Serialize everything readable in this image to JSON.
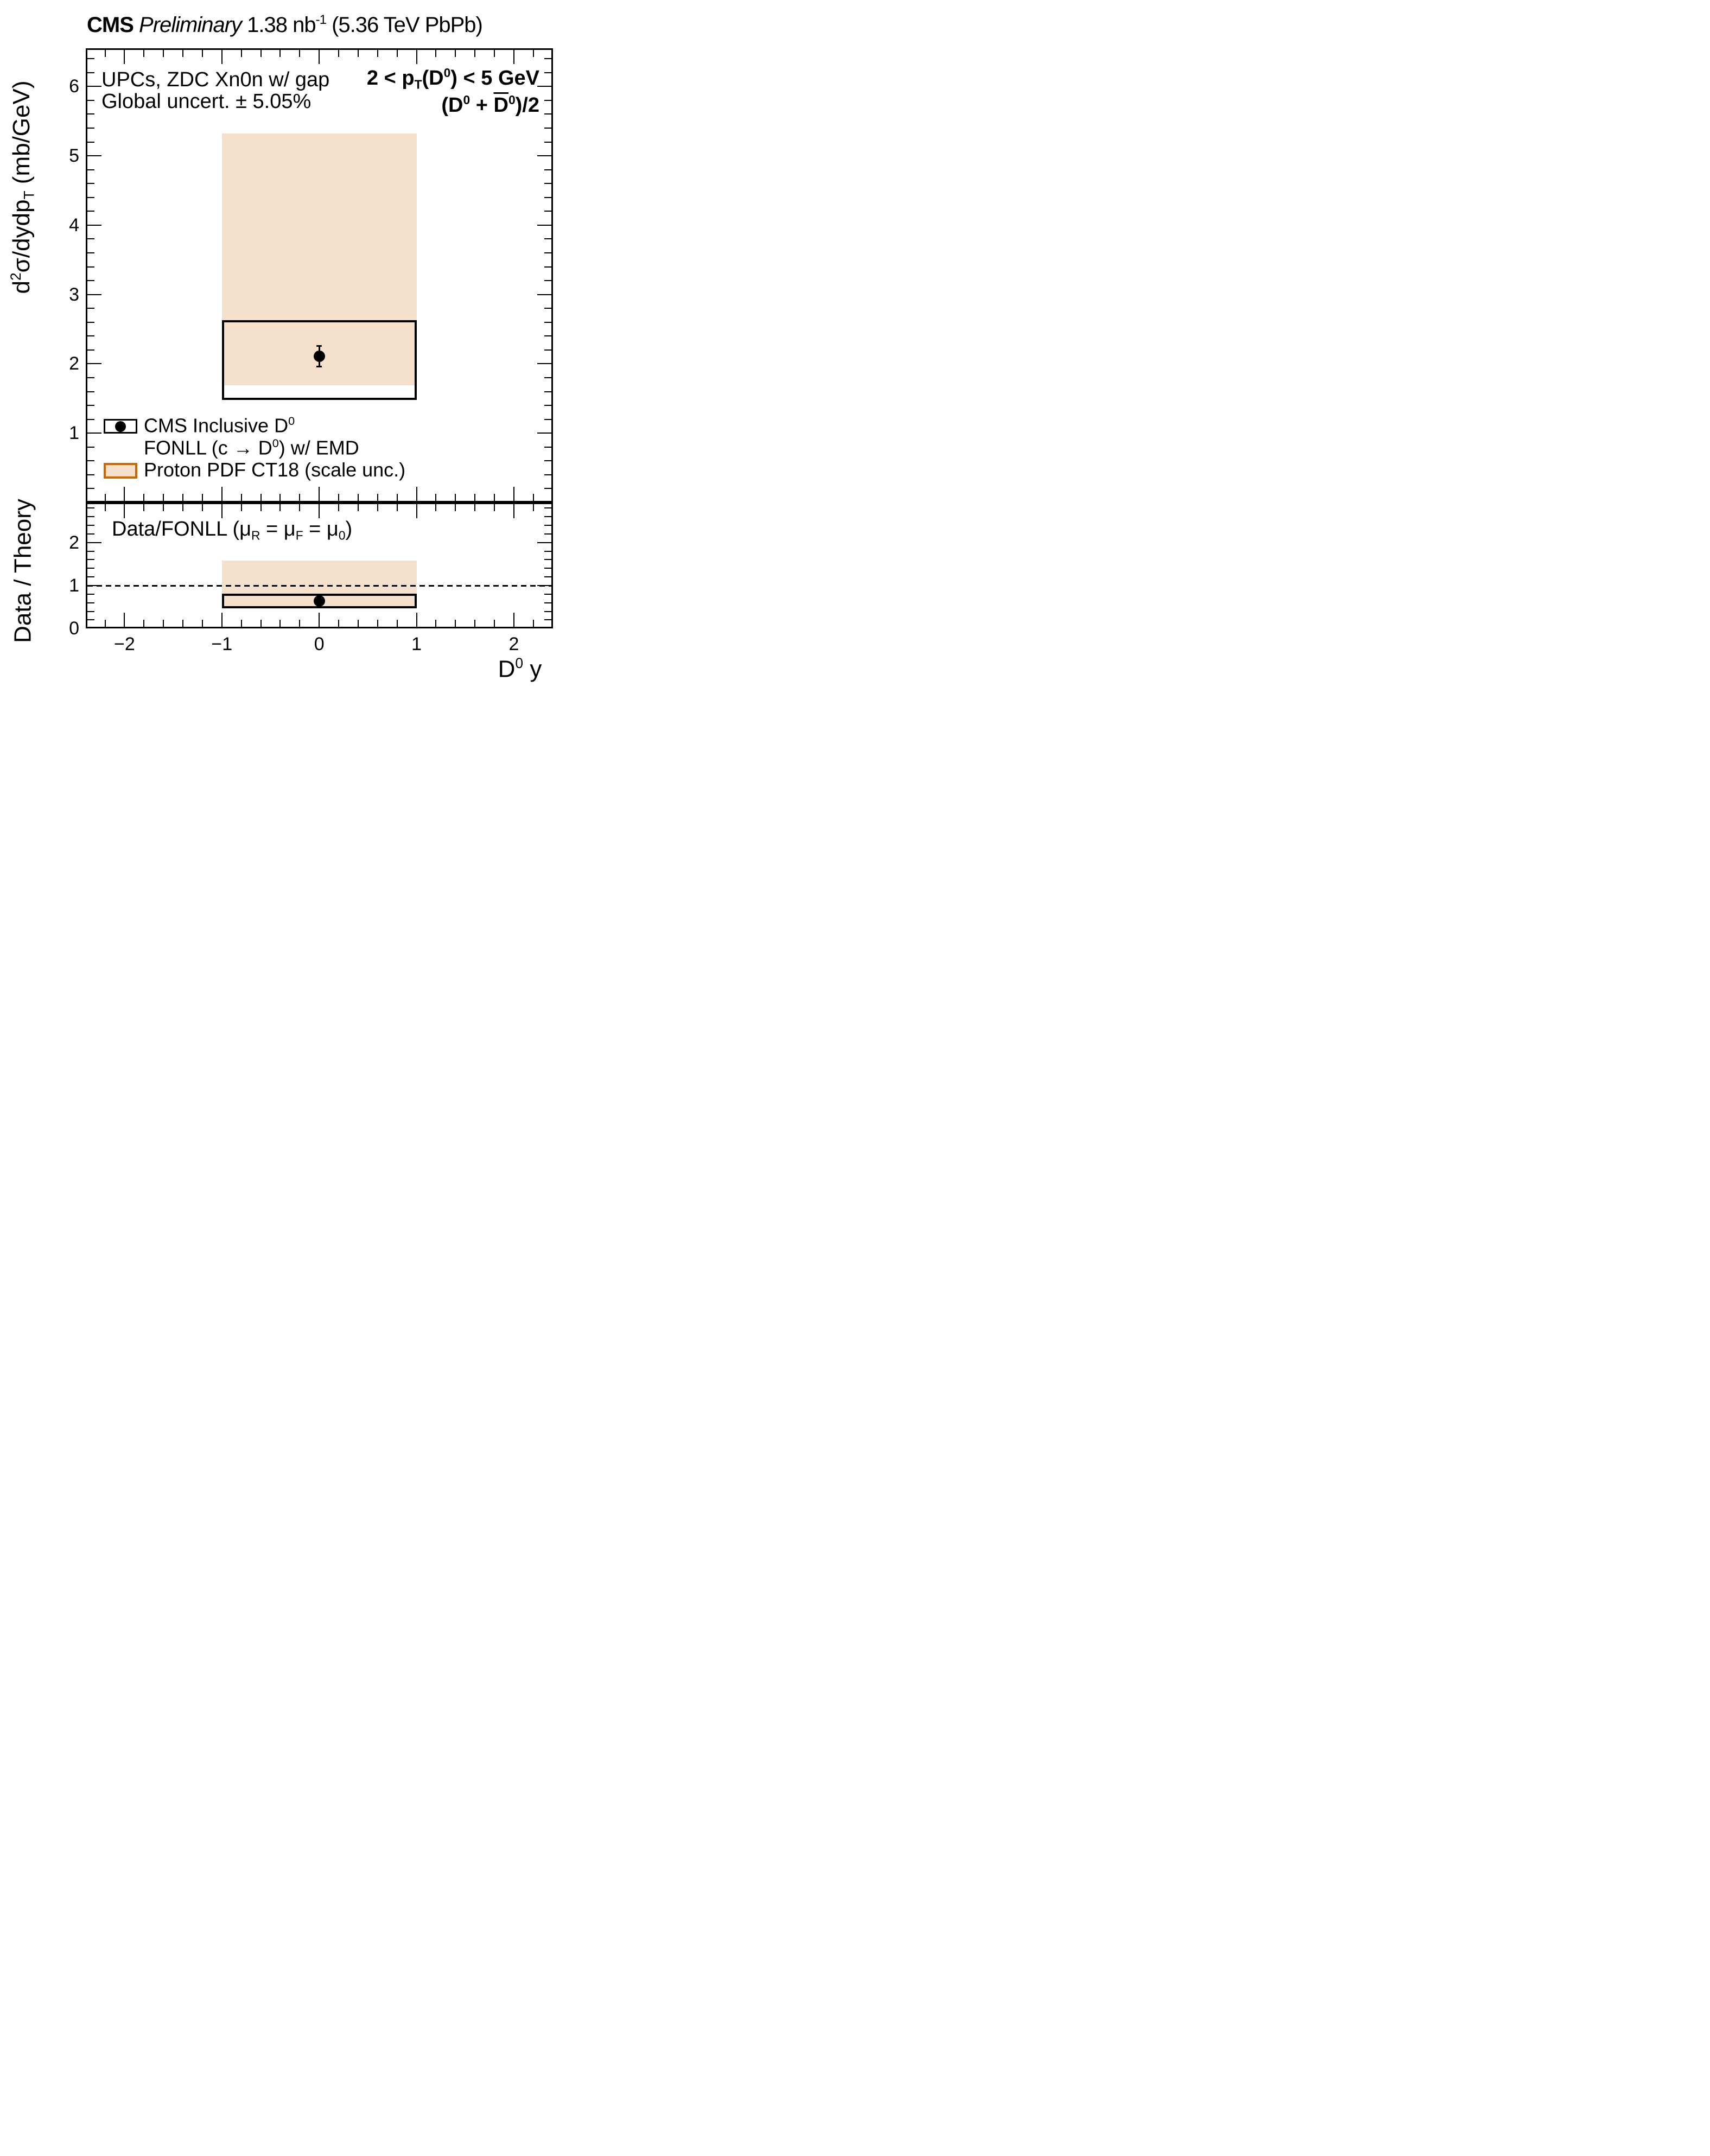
{
  "colors": {
    "band_fill": "#F5E0CC",
    "band_edge": "#CC6600",
    "marker": "#000000",
    "frame": "#000000"
  },
  "title": {
    "segments": [
      {
        "t": "CMS",
        "s": "b"
      },
      {
        "t": " ",
        "s": "n"
      },
      {
        "t": "Preliminary",
        "s": "i"
      },
      {
        "t": " 1.38 nb",
        "s": "n"
      },
      {
        "t": "-1",
        "s": "sup"
      },
      {
        "t": " (5.36 TeV PbPb)",
        "s": "n"
      }
    ]
  },
  "annotations": {
    "upc_line1": {
      "segments": [
        {
          "t": "UPCs, ZDC Xn0n w/ gap",
          "s": "n"
        }
      ]
    },
    "upc_line2": {
      "segments": [
        {
          "t": "Global uncert. ± 5.05%",
          "s": "n"
        }
      ]
    },
    "pt_line1": {
      "segments": [
        {
          "t": "2 < p",
          "s": "b"
        },
        {
          "t": "T",
          "s": "bsub"
        },
        {
          "t": "(D",
          "s": "b"
        },
        {
          "t": "0",
          "s": "bsup"
        },
        {
          "t": ") < 5 GeV",
          "s": "b"
        }
      ]
    },
    "pt_line2": {
      "segments": [
        {
          "t": "(D",
          "s": "b"
        },
        {
          "t": "0",
          "s": "bsup"
        },
        {
          "t": " + ",
          "s": "b"
        },
        {
          "t": "D",
          "s": "bovl"
        },
        {
          "t": "0",
          "s": "bsup"
        },
        {
          "t": ")/2",
          "s": "b"
        }
      ]
    },
    "ratio_label": {
      "segments": [
        {
          "t": "Data/FONLL (μ",
          "s": "n"
        },
        {
          "t": "R",
          "s": "sub"
        },
        {
          "t": " = μ",
          "s": "n"
        },
        {
          "t": "F",
          "s": "sub"
        },
        {
          "t": " = μ",
          "s": "n"
        },
        {
          "t": "0",
          "s": "sub"
        },
        {
          "t": ")",
          "s": "n"
        }
      ]
    }
  },
  "legend": {
    "items": [
      {
        "marker": "data-point-in-box",
        "segments": [
          {
            "t": "CMS Inclusive D",
            "s": "n"
          },
          {
            "t": "0",
            "s": "sup"
          }
        ]
      },
      {
        "marker": "none",
        "segments": [
          {
            "t": "FONLL (c → D",
            "s": "n"
          },
          {
            "t": "0",
            "s": "sup"
          },
          {
            "t": ") w/ EMD",
            "s": "n"
          }
        ]
      },
      {
        "marker": "orange-band",
        "segments": [
          {
            "t": "Proton PDF CT18 (scale unc.)",
            "s": "n"
          }
        ]
      }
    ]
  },
  "axis_titles": {
    "y_main": {
      "segments": [
        {
          "t": "d",
          "s": "n"
        },
        {
          "t": "2",
          "s": "sup"
        },
        {
          "t": "σ/dydp",
          "s": "n"
        },
        {
          "t": "T",
          "s": "sub"
        },
        {
          "t": " (mb/GeV)",
          "s": "n"
        }
      ]
    },
    "y_ratio": {
      "segments": [
        {
          "t": "Data / Theory",
          "s": "n"
        }
      ]
    },
    "x": {
      "segments": [
        {
          "t": "D",
          "s": "n"
        },
        {
          "t": "0",
          "s": "sup"
        },
        {
          "t": " y",
          "s": "n"
        }
      ]
    }
  },
  "chart_data": [
    {
      "panel": "main",
      "type": "scatter",
      "title": "CMS Preliminary 1.38 nb-1 (5.36 TeV PbPb), UPCs ZDC Xn0n w/ gap, 2 < pT(D0) < 5 GeV, (D0 + D0bar)/2",
      "xlabel": "D0 y",
      "ylabel": "d2σ/dydpT (mb/GeV)",
      "xlim": [
        -2.4,
        2.4
      ],
      "ylim": [
        0,
        6.55
      ],
      "grid": false,
      "xticks": [
        {
          "v": -2,
          "label": "−2"
        },
        {
          "v": -1,
          "label": "−1"
        },
        {
          "v": 0,
          "label": "0"
        },
        {
          "v": 1,
          "label": "1"
        },
        {
          "v": 2,
          "label": "2"
        }
      ],
      "yticks": [
        {
          "v": 1,
          "label": "1"
        },
        {
          "v": 2,
          "label": "2"
        },
        {
          "v": 3,
          "label": "3"
        },
        {
          "v": 4,
          "label": "4"
        },
        {
          "v": 5,
          "label": "5"
        },
        {
          "v": 6,
          "label": "6"
        }
      ],
      "minor_step": 0.2,
      "global_uncertainty_pct": 5.05,
      "series": [
        {
          "name": "FONLL (c → D0) w/ EMD, Proton PDF CT18 (scale unc.)",
          "type": "band",
          "x": [
            -1,
            1
          ],
          "y_low": 1.69,
          "y_high": 5.32
        },
        {
          "name": "CMS Inclusive D0",
          "type": "point",
          "x": 0,
          "y": 2.11,
          "stat_err": 0.15,
          "syst_box": {
            "x": [
              -1,
              1
            ],
            "y_low": 1.48,
            "y_high": 2.63
          }
        }
      ]
    },
    {
      "panel": "ratio",
      "type": "scatter",
      "title": "Data/FONLL (μR = μF = μ0)",
      "xlabel": "D0 y",
      "ylabel": "Data / Theory",
      "xlim": [
        -2.4,
        2.4
      ],
      "ylim": [
        0,
        2.93
      ],
      "grid": false,
      "ref_line": 1.0,
      "xticks": [
        {
          "v": -2,
          "label": "−2"
        },
        {
          "v": -1,
          "label": "−1"
        },
        {
          "v": 0,
          "label": "0"
        },
        {
          "v": 1,
          "label": "1"
        },
        {
          "v": 2,
          "label": "2"
        }
      ],
      "yticks": [
        {
          "v": 0,
          "label": "0"
        },
        {
          "v": 1,
          "label": "1"
        },
        {
          "v": 2,
          "label": "2"
        }
      ],
      "minor_step": 0.2,
      "show_x_labels": true,
      "series": [
        {
          "name": "FONLL scale unc. band",
          "type": "band",
          "x": [
            -1,
            1
          ],
          "y_low": 0.52,
          "y_high": 1.58
        },
        {
          "name": "Data/FONLL",
          "type": "point",
          "x": 0,
          "y": 0.64,
          "stat_err": 0.05,
          "syst_box": {
            "x": [
              -1,
              1
            ],
            "y_low": 0.47,
            "y_high": 0.81
          }
        }
      ]
    }
  ]
}
